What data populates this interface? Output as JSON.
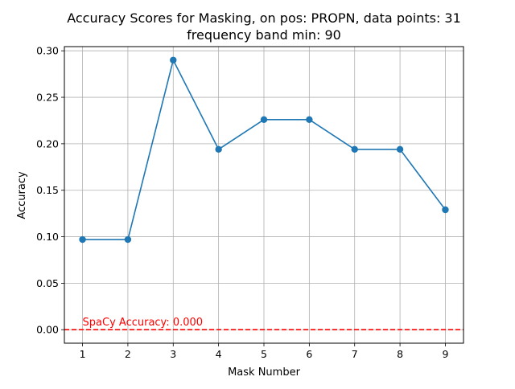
{
  "chart_data": {
    "type": "line",
    "title_line1": "Accuracy Scores for Masking, on pos: PROPN, data points: 31",
    "title_line2": "frequency band min: 90",
    "xlabel": "Mask Number",
    "ylabel": "Accuracy",
    "x": [
      1,
      2,
      3,
      4,
      5,
      6,
      7,
      8,
      9
    ],
    "series": [
      {
        "values": [
          0.097,
          0.097,
          0.29,
          0.194,
          0.226,
          0.226,
          0.194,
          0.194,
          0.129
        ],
        "color": "#1f77b4"
      }
    ],
    "xlim": [
      0.6,
      9.4
    ],
    "ylim": [
      -0.0145,
      0.3045
    ],
    "xticks": [
      1,
      2,
      3,
      4,
      5,
      6,
      7,
      8,
      9
    ],
    "xtick_labels": [
      "1",
      "2",
      "3",
      "4",
      "5",
      "6",
      "7",
      "8",
      "9"
    ],
    "yticks": [
      0.0,
      0.05,
      0.1,
      0.15,
      0.2,
      0.25,
      0.3
    ],
    "ytick_labels": [
      "0.00",
      "0.05",
      "0.10",
      "0.15",
      "0.20",
      "0.25",
      "0.30"
    ],
    "grid": true,
    "reference_line": {
      "y": 0.0,
      "color": "#ff0000",
      "style": "dashed"
    },
    "annotation": {
      "text": "SpaCy Accuracy: 0.000",
      "x": 1,
      "y": 0.0,
      "color": "#ff0000"
    }
  }
}
